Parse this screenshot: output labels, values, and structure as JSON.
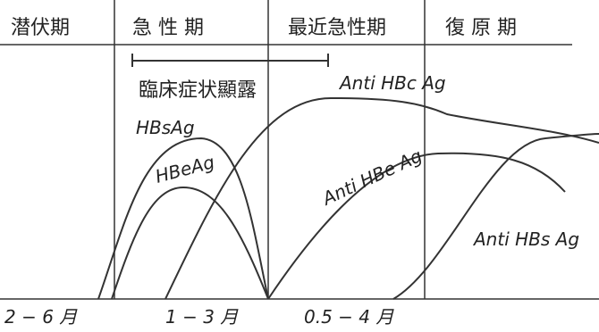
{
  "phases": [
    "潜伏期",
    "急 性 期",
    "最近急性期",
    "復 原 期"
  ],
  "clinical_label": "臨床症状顯露",
  "curves": [
    {
      "label": "HBsAg"
    },
    {
      "label": "HBeAg"
    },
    {
      "label": "Anti HBc Ag"
    },
    {
      "label": "Anti HBe Ag"
    },
    {
      "label": "Anti HBs Ag"
    }
  ],
  "time_labels": [
    "2 − 6 月",
    "1 − 3 月",
    "0.5 − 4 月"
  ]
}
